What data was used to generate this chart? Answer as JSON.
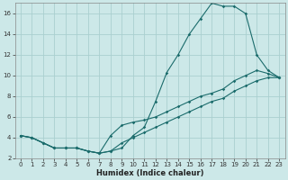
{
  "xlabel": "Humidex (Indice chaleur)",
  "bg_color": "#cce8e8",
  "grid_color": "#aacfcf",
  "line_color": "#1a6b6b",
  "xlim": [
    -0.5,
    23.5
  ],
  "ylim": [
    2,
    17
  ],
  "xticks": [
    0,
    1,
    2,
    3,
    4,
    5,
    6,
    7,
    8,
    9,
    10,
    11,
    12,
    13,
    14,
    15,
    16,
    17,
    18,
    19,
    20,
    21,
    22,
    23
  ],
  "yticks": [
    2,
    4,
    6,
    8,
    10,
    12,
    14,
    16
  ],
  "series1_x": [
    0,
    1,
    2,
    3,
    4,
    5,
    6,
    7,
    8,
    9,
    10,
    11,
    12,
    13,
    14,
    15,
    16,
    17,
    18,
    19,
    20,
    21,
    22,
    23
  ],
  "series1_y": [
    4.2,
    4.0,
    3.5,
    3.0,
    3.0,
    3.0,
    2.7,
    2.5,
    2.7,
    3.0,
    4.2,
    5.0,
    7.5,
    10.3,
    12.0,
    14.0,
    15.5,
    17.0,
    16.7,
    16.7,
    16.0,
    12.0,
    10.5,
    9.8
  ],
  "series2_x": [
    0,
    1,
    2,
    3,
    4,
    5,
    6,
    7,
    8,
    9,
    10,
    11,
    12,
    13,
    14,
    15,
    16,
    17,
    18,
    19,
    20,
    21,
    22,
    23
  ],
  "series2_y": [
    4.2,
    4.0,
    3.5,
    3.0,
    3.0,
    3.0,
    2.7,
    2.5,
    4.2,
    5.2,
    5.5,
    5.7,
    6.0,
    6.5,
    7.0,
    7.5,
    8.0,
    8.3,
    8.7,
    9.5,
    10.0,
    10.5,
    10.2,
    9.8
  ],
  "series3_x": [
    0,
    1,
    2,
    3,
    4,
    5,
    6,
    7,
    8,
    9,
    10,
    11,
    12,
    13,
    14,
    15,
    16,
    17,
    18,
    19,
    20,
    21,
    22,
    23
  ],
  "series3_y": [
    4.2,
    4.0,
    3.5,
    3.0,
    3.0,
    3.0,
    2.7,
    2.5,
    2.7,
    3.5,
    4.0,
    4.5,
    5.0,
    5.5,
    6.0,
    6.5,
    7.0,
    7.5,
    7.8,
    8.5,
    9.0,
    9.5,
    9.8,
    9.8
  ],
  "tick_labelsize": 5,
  "xlabel_fontsize": 6,
  "marker_size": 1.8,
  "line_width": 0.8
}
